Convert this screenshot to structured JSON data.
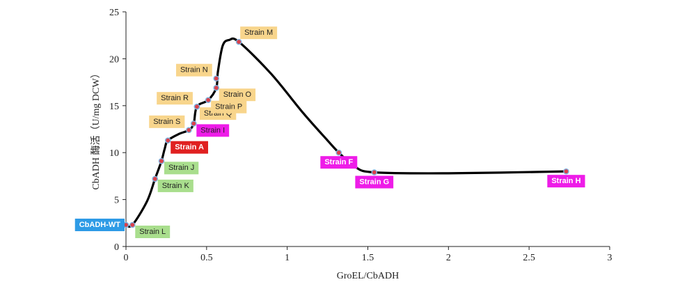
{
  "chart_data": {
    "type": "scatter",
    "xlabel": "GroEL/CbADH",
    "ylabel": "CbADH 酶活（U/mg DCW）",
    "xlim": [
      0,
      3
    ],
    "ylim": [
      0,
      25
    ],
    "x_ticks": [
      "0",
      "0.5",
      "1",
      "1.5",
      "2",
      "2.5",
      "3"
    ],
    "y_ticks": [
      "0",
      "5",
      "10",
      "15",
      "20",
      "25"
    ],
    "grid": false,
    "legend": "none",
    "points": [
      {
        "name": "CbADH-WT",
        "x": 0.0,
        "y": 2.3,
        "color": "#2E9BE6",
        "text_color": "#ffffff",
        "label_pos": "left"
      },
      {
        "name": "Strain L",
        "x": 0.04,
        "y": 2.3,
        "color": "#A9DE8D",
        "text_color": "#222222",
        "label_pos": "right-below"
      },
      {
        "name": "Strain K",
        "x": 0.18,
        "y": 7.2,
        "color": "#A9DE8D",
        "text_color": "#222222",
        "label_pos": "right-below"
      },
      {
        "name": "Strain J",
        "x": 0.22,
        "y": 9.1,
        "color": "#A9DE8D",
        "text_color": "#222222",
        "label_pos": "right-below"
      },
      {
        "name": "Strain A",
        "x": 0.26,
        "y": 11.3,
        "color": "#E02020",
        "text_color": "#ffffff",
        "label_pos": "right-below"
      },
      {
        "name": "Strain S",
        "x": 0.39,
        "y": 12.4,
        "color": "#F8D58C",
        "text_color": "#222222",
        "label_pos": "left-above"
      },
      {
        "name": "Strain I",
        "x": 0.42,
        "y": 13.1,
        "color": "#EE1CE8",
        "text_color": "#222222",
        "label_pos": "right-below"
      },
      {
        "name": "Strain Q",
        "x": 0.44,
        "y": 14.9,
        "color": "#F8D58C",
        "text_color": "#222222",
        "label_pos": "right-below"
      },
      {
        "name": "Strain R",
        "x": 0.44,
        "y": 14.9,
        "color": "#F8D58C",
        "text_color": "#222222",
        "label_pos": "left-above"
      },
      {
        "name": "Strain P",
        "x": 0.51,
        "y": 15.6,
        "color": "#F8D58C",
        "text_color": "#222222",
        "label_pos": "right-below"
      },
      {
        "name": "Strain O",
        "x": 0.56,
        "y": 16.9,
        "color": "#F8D58C",
        "text_color": "#222222",
        "label_pos": "right-below"
      },
      {
        "name": "Strain N",
        "x": 0.56,
        "y": 17.9,
        "color": "#F8D58C",
        "text_color": "#222222",
        "label_pos": "left-above"
      },
      {
        "name": "Strain M",
        "x": 0.7,
        "y": 21.8,
        "color": "#F8D58C",
        "text_color": "#222222",
        "label_pos": "right-above"
      },
      {
        "name": "Strain F",
        "x": 1.32,
        "y": 10.0,
        "color": "#EE1CE8",
        "text_color": "#ffffff",
        "label_pos": "below"
      },
      {
        "name": "Strain G",
        "x": 1.54,
        "y": 7.9,
        "color": "#EE1CE8",
        "text_color": "#ffffff",
        "label_pos": "below"
      },
      {
        "name": "Strain H",
        "x": 2.73,
        "y": 8.0,
        "color": "#EE1CE8",
        "text_color": "#ffffff",
        "label_pos": "below"
      }
    ],
    "curve": [
      [
        0.0,
        2.3
      ],
      [
        0.04,
        2.3
      ],
      [
        0.13,
        4.8
      ],
      [
        0.18,
        7.2
      ],
      [
        0.22,
        9.1
      ],
      [
        0.24,
        10.4
      ],
      [
        0.26,
        11.3
      ],
      [
        0.33,
        12.0
      ],
      [
        0.39,
        12.4
      ],
      [
        0.42,
        13.1
      ],
      [
        0.44,
        14.9
      ],
      [
        0.51,
        15.6
      ],
      [
        0.56,
        16.9
      ],
      [
        0.57,
        18.6
      ],
      [
        0.6,
        21.4
      ],
      [
        0.64,
        22.0
      ],
      [
        0.7,
        21.8
      ],
      [
        0.9,
        18.4
      ],
      [
        1.1,
        14.2
      ],
      [
        1.25,
        11.3
      ],
      [
        1.32,
        10.0
      ],
      [
        1.42,
        8.5
      ],
      [
        1.54,
        7.9
      ],
      [
        2.0,
        7.8
      ],
      [
        2.73,
        8.0
      ]
    ]
  }
}
